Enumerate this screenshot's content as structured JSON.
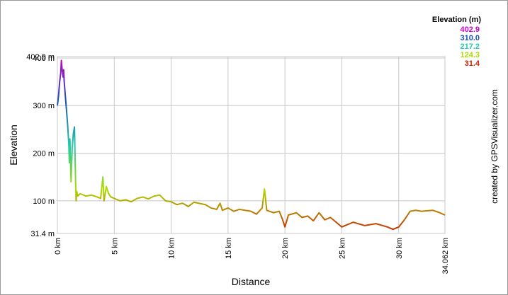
{
  "chart_data": {
    "type": "line",
    "xlabel": "Distance",
    "ylabel": "Elevation",
    "credit": "created by GPSVisualizer.com",
    "legend_title": "Elevation (m)",
    "color_scale": [
      {
        "value": 402.9,
        "color": "#cc00cc"
      },
      {
        "value": 310,
        "label": "310.0",
        "color": "#1a4fb4"
      },
      {
        "value": 217.2,
        "color": "#22ccaa"
      },
      {
        "value": 124.3,
        "color": "#aadd00"
      },
      {
        "value": 31.4,
        "color": "#cc2200"
      }
    ],
    "xlim": [
      0,
      34.062
    ],
    "ylim": [
      31.4,
      402.9
    ],
    "xticks": [
      {
        "value": 0,
        "label": "0 km"
      },
      {
        "value": 5,
        "label": "5 km"
      },
      {
        "value": 10,
        "label": "10 km"
      },
      {
        "value": 15,
        "label": "15 km"
      },
      {
        "value": 20,
        "label": "20 km"
      },
      {
        "value": 25,
        "label": "25 km"
      },
      {
        "value": 30,
        "label": "30 km"
      },
      {
        "value": 34.062,
        "label": "34.062 km"
      }
    ],
    "yticks": [
      {
        "value": 31.4,
        "label": "31.4 m"
      },
      {
        "value": 100,
        "label": "100 m"
      },
      {
        "value": 200,
        "label": "200 m"
      },
      {
        "value": 300,
        "label": "300 m"
      },
      {
        "value": 400,
        "label": "400 m"
      },
      {
        "value": 402.9,
        "label": "402.9 m"
      }
    ],
    "grid": true,
    "x": [
      0,
      0.1,
      0.2,
      0.3,
      0.35,
      0.4,
      0.5,
      0.55,
      0.6,
      0.7,
      0.8,
      0.9,
      1.0,
      1.05,
      1.1,
      1.15,
      1.2,
      1.3,
      1.4,
      1.5,
      1.55,
      1.6,
      1.65,
      1.7,
      1.8,
      2.0,
      2.5,
      3.0,
      3.5,
      3.8,
      4.0,
      4.1,
      4.3,
      4.5,
      4.7,
      5.0,
      5.5,
      6.0,
      6.5,
      7.0,
      7.5,
      8.0,
      8.5,
      9.0,
      9.5,
      10,
      10.5,
      11,
      11.5,
      12,
      13,
      13.5,
      14,
      14.3,
      14.5,
      15,
      15.5,
      16,
      17,
      17.5,
      18,
      18.2,
      18.4,
      19,
      19.5,
      19.8,
      20,
      20.3,
      21,
      21.5,
      22,
      22.5,
      23,
      23.5,
      24,
      24.5,
      25,
      25.5,
      26,
      27,
      28,
      29,
      29.5,
      30,
      30.5,
      31,
      31.5,
      32,
      33,
      33.5,
      34.062
    ],
    "y": [
      300,
      320,
      350,
      370,
      395,
      380,
      360,
      375,
      350,
      320,
      290,
      260,
      220,
      180,
      230,
      190,
      140,
      210,
      240,
      255,
      200,
      140,
      100,
      120,
      110,
      115,
      110,
      112,
      108,
      105,
      150,
      100,
      130,
      115,
      108,
      105,
      100,
      102,
      98,
      105,
      108,
      104,
      110,
      112,
      100,
      98,
      92,
      95,
      88,
      97,
      92,
      85,
      82,
      95,
      80,
      85,
      78,
      82,
      78,
      72,
      85,
      125,
      80,
      75,
      78,
      60,
      45,
      70,
      75,
      65,
      68,
      58,
      75,
      60,
      65,
      55,
      45,
      50,
      55,
      48,
      52,
      45,
      40,
      45,
      60,
      78,
      80,
      78,
      80,
      76,
      70
    ]
  }
}
